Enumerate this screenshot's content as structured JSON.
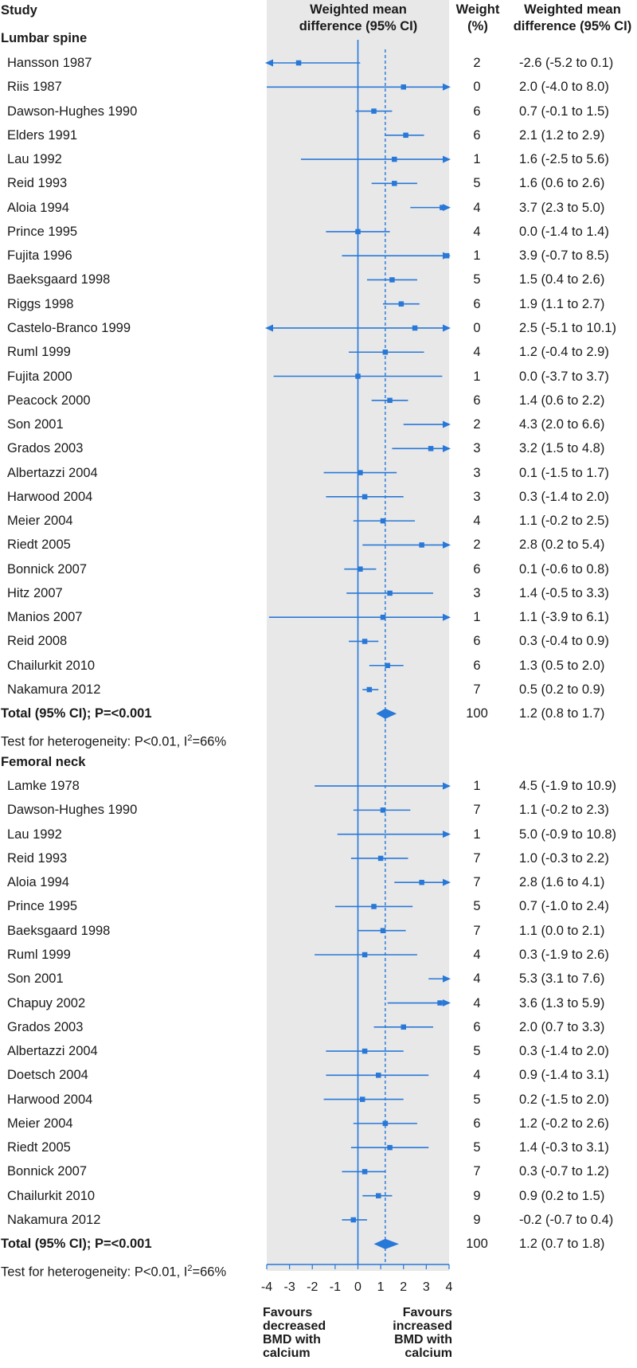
{
  "colors": {
    "panel_bg": "#e8e8e8",
    "accent": "#2878d8",
    "text": "#1a1a1a"
  },
  "header": {
    "study": "Study",
    "plot_title_line1": "Weighted mean",
    "plot_title_line2": "difference (95% CI)",
    "weight_line1": "Weight",
    "weight_line2": "(%)",
    "ci_line1": "Weighted mean",
    "ci_line2": "difference (95% CI)"
  },
  "footer": {
    "favours_decreased": [
      "Favours",
      "decreased",
      "BMD with",
      "calcium"
    ],
    "favours_increased": [
      "Favours",
      "increased",
      "BMD with",
      "calcium"
    ]
  },
  "chart_data": {
    "type": "forest",
    "x_axis": {
      "range": [
        -4,
        4
      ],
      "ticks": [
        -4,
        -3,
        -2,
        -1,
        0,
        1,
        2,
        3,
        4
      ],
      "tick_labels": [
        "-4",
        "-3",
        "-2",
        "-1",
        "0",
        "1",
        "2",
        "3",
        "4"
      ],
      "reference_line": 0
    },
    "sections": [
      {
        "title": "Lumbar spine",
        "studies": [
          {
            "study": "Hansson 1987",
            "weight": "2",
            "ci_text": "-2.6 (-5.2 to 0.1)",
            "est": -2.6,
            "lo": -5.2,
            "hi": 0.1
          },
          {
            "study": "Riis 1987",
            "weight": "0",
            "ci_text": "2.0 (-4.0 to 8.0)",
            "est": 2.0,
            "lo": -4.0,
            "hi": 8.0
          },
          {
            "study": "Dawson-Hughes 1990",
            "weight": "6",
            "ci_text": "0.7 (-0.1 to 1.5)",
            "est": 0.7,
            "lo": -0.1,
            "hi": 1.5
          },
          {
            "study": "Elders 1991",
            "weight": "6",
            "ci_text": "2.1 (1.2 to 2.9)",
            "est": 2.1,
            "lo": 1.2,
            "hi": 2.9
          },
          {
            "study": "Lau 1992",
            "weight": "1",
            "ci_text": "1.6 (-2.5 to 5.6)",
            "est": 1.6,
            "lo": -2.5,
            "hi": 5.6
          },
          {
            "study": "Reid 1993",
            "weight": "5",
            "ci_text": "1.6 (0.6 to 2.6)",
            "est": 1.6,
            "lo": 0.6,
            "hi": 2.6
          },
          {
            "study": "Aloia 1994",
            "weight": "4",
            "ci_text": "3.7 (2.3 to 5.0)",
            "est": 3.7,
            "lo": 2.3,
            "hi": 5.0
          },
          {
            "study": "Prince 1995",
            "weight": "4",
            "ci_text": "0.0 (-1.4 to 1.4)",
            "est": 0.0,
            "lo": -1.4,
            "hi": 1.4
          },
          {
            "study": "Fujita 1996",
            "weight": "1",
            "ci_text": "3.9 (-0.7 to 8.5)",
            "est": 3.9,
            "lo": -0.7,
            "hi": 8.5
          },
          {
            "study": "Baeksgaard 1998",
            "weight": "5",
            "ci_text": "1.5 (0.4 to 2.6)",
            "est": 1.5,
            "lo": 0.4,
            "hi": 2.6
          },
          {
            "study": "Riggs 1998",
            "weight": "6",
            "ci_text": "1.9 (1.1 to 2.7)",
            "est": 1.9,
            "lo": 1.1,
            "hi": 2.7
          },
          {
            "study": "Castelo-Branco 1999",
            "weight": "0",
            "ci_text": "2.5 (-5.1 to 10.1)",
            "est": 2.5,
            "lo": -5.1,
            "hi": 10.1
          },
          {
            "study": "Ruml 1999",
            "weight": "4",
            "ci_text": "1.2 (-0.4 to 2.9)",
            "est": 1.2,
            "lo": -0.4,
            "hi": 2.9
          },
          {
            "study": "Fujita 2000",
            "weight": "1",
            "ci_text": "0.0 (-3.7 to 3.7)",
            "est": 0.0,
            "lo": -3.7,
            "hi": 3.7
          },
          {
            "study": "Peacock 2000",
            "weight": "6",
            "ci_text": "1.4 (0.6 to 2.2)",
            "est": 1.4,
            "lo": 0.6,
            "hi": 2.2
          },
          {
            "study": "Son 2001",
            "weight": "2",
            "ci_text": "4.3 (2.0 to 6.6)",
            "est": 4.3,
            "lo": 2.0,
            "hi": 6.6
          },
          {
            "study": "Grados 2003",
            "weight": "3",
            "ci_text": "3.2 (1.5 to 4.8)",
            "est": 3.2,
            "lo": 1.5,
            "hi": 4.8
          },
          {
            "study": "Albertazzi 2004",
            "weight": "3",
            "ci_text": "0.1 (-1.5 to 1.7)",
            "est": 0.1,
            "lo": -1.5,
            "hi": 1.7
          },
          {
            "study": "Harwood 2004",
            "weight": "3",
            "ci_text": "0.3 (-1.4 to 2.0)",
            "est": 0.3,
            "lo": -1.4,
            "hi": 2.0
          },
          {
            "study": "Meier 2004",
            "weight": "4",
            "ci_text": "1.1 (-0.2 to 2.5)",
            "est": 1.1,
            "lo": -0.2,
            "hi": 2.5
          },
          {
            "study": "Riedt 2005",
            "weight": "2",
            "ci_text": "2.8 (0.2 to 5.4)",
            "est": 2.8,
            "lo": 0.2,
            "hi": 5.4
          },
          {
            "study": "Bonnick 2007",
            "weight": "6",
            "ci_text": "0.1 (-0.6 to 0.8)",
            "est": 0.1,
            "lo": -0.6,
            "hi": 0.8
          },
          {
            "study": "Hitz 2007",
            "weight": "3",
            "ci_text": "1.4 (-0.5 to 3.3)",
            "est": 1.4,
            "lo": -0.5,
            "hi": 3.3
          },
          {
            "study": "Manios 2007",
            "weight": "1",
            "ci_text": "1.1 (-3.9 to 6.1)",
            "est": 1.1,
            "lo": -3.9,
            "hi": 6.1
          },
          {
            "study": "Reid 2008",
            "weight": "6",
            "ci_text": "0.3 (-0.4 to 0.9)",
            "est": 0.3,
            "lo": -0.4,
            "hi": 0.9
          },
          {
            "study": "Chailurkit 2010",
            "weight": "6",
            "ci_text": "1.3 (0.5 to 2.0)",
            "est": 1.3,
            "lo": 0.5,
            "hi": 2.0
          },
          {
            "study": "Nakamura 2012",
            "weight": "7",
            "ci_text": "0.5 (0.2 to 0.9)",
            "est": 0.5,
            "lo": 0.2,
            "hi": 0.9
          }
        ],
        "total": {
          "label": "Total (95% CI); P=<0.001",
          "weight": "100",
          "ci_text": "1.2 (0.8 to 1.7)",
          "est": 1.2,
          "lo": 0.8,
          "hi": 1.7
        },
        "heterogeneity": {
          "prefix": "Test for heterogeneity: P<0.01, I",
          "sup": "2",
          "suffix": "=66%"
        }
      },
      {
        "title": "Femoral neck",
        "studies": [
          {
            "study": "Lamke 1978",
            "weight": "1",
            "ci_text": "4.5 (-1.9 to 10.9)",
            "est": 4.5,
            "lo": -1.9,
            "hi": 10.9
          },
          {
            "study": "Dawson-Hughes 1990",
            "weight": "7",
            "ci_text": "1.1 (-0.2 to 2.3)",
            "est": 1.1,
            "lo": -0.2,
            "hi": 2.3
          },
          {
            "study": "Lau 1992",
            "weight": "1",
            "ci_text": "5.0 (-0.9 to 10.8)",
            "est": 5.0,
            "lo": -0.9,
            "hi": 10.8
          },
          {
            "study": "Reid 1993",
            "weight": "7",
            "ci_text": "1.0 (-0.3 to 2.2)",
            "est": 1.0,
            "lo": -0.3,
            "hi": 2.2
          },
          {
            "study": "Aloia 1994",
            "weight": "7",
            "ci_text": "2.8 (1.6 to 4.1)",
            "est": 2.8,
            "lo": 1.6,
            "hi": 4.1
          },
          {
            "study": "Prince 1995",
            "weight": "5",
            "ci_text": "0.7 (-1.0 to 2.4)",
            "est": 0.7,
            "lo": -1.0,
            "hi": 2.4
          },
          {
            "study": "Baeksgaard 1998",
            "weight": "7",
            "ci_text": "1.1 (0.0 to 2.1)",
            "est": 1.1,
            "lo": 0.0,
            "hi": 2.1
          },
          {
            "study": "Ruml 1999",
            "weight": "4",
            "ci_text": "0.3 (-1.9 to 2.6)",
            "est": 0.3,
            "lo": -1.9,
            "hi": 2.6
          },
          {
            "study": "Son 2001",
            "weight": "4",
            "ci_text": "5.3 (3.1 to 7.6)",
            "est": 5.3,
            "lo": 3.1,
            "hi": 7.6
          },
          {
            "study": "Chapuy 2002",
            "weight": "4",
            "ci_text": "3.6 (1.3 to 5.9)",
            "est": 3.6,
            "lo": 1.3,
            "hi": 5.9
          },
          {
            "study": "Grados 2003",
            "weight": "6",
            "ci_text": "2.0 (0.7 to 3.3)",
            "est": 2.0,
            "lo": 0.7,
            "hi": 3.3
          },
          {
            "study": "Albertazzi 2004",
            "weight": "5",
            "ci_text": "0.3 (-1.4 to 2.0)",
            "est": 0.3,
            "lo": -1.4,
            "hi": 2.0
          },
          {
            "study": "Doetsch 2004",
            "weight": "4",
            "ci_text": "0.9 (-1.4 to 3.1)",
            "est": 0.9,
            "lo": -1.4,
            "hi": 3.1
          },
          {
            "study": "Harwood 2004",
            "weight": "5",
            "ci_text": "0.2 (-1.5 to 2.0)",
            "est": 0.2,
            "lo": -1.5,
            "hi": 2.0
          },
          {
            "study": "Meier 2004",
            "weight": "6",
            "ci_text": "1.2 (-0.2 to 2.6)",
            "est": 1.2,
            "lo": -0.2,
            "hi": 2.6
          },
          {
            "study": "Riedt 2005",
            "weight": "5",
            "ci_text": "1.4 (-0.3 to 3.1)",
            "est": 1.4,
            "lo": -0.3,
            "hi": 3.1
          },
          {
            "study": "Bonnick 2007",
            "weight": "7",
            "ci_text": "0.3 (-0.7 to 1.2)",
            "est": 0.3,
            "lo": -0.7,
            "hi": 1.2
          },
          {
            "study": "Chailurkit 2010",
            "weight": "9",
            "ci_text": "0.9 (0.2 to 1.5)",
            "est": 0.9,
            "lo": 0.2,
            "hi": 1.5
          },
          {
            "study": "Nakamura 2012",
            "weight": "9",
            "ci_text": "-0.2 (-0.7 to 0.4)",
            "est": -0.2,
            "lo": -0.7,
            "hi": 0.4
          }
        ],
        "total": {
          "label": "Total (95% CI); P=<0.001",
          "weight": "100",
          "ci_text": "1.2 (0.7 to 1.8)",
          "est": 1.2,
          "lo": 0.7,
          "hi": 1.8
        },
        "heterogeneity": {
          "prefix": "Test for heterogeneity: P<0.01, I",
          "sup": "2",
          "suffix": "=66%"
        }
      }
    ]
  }
}
